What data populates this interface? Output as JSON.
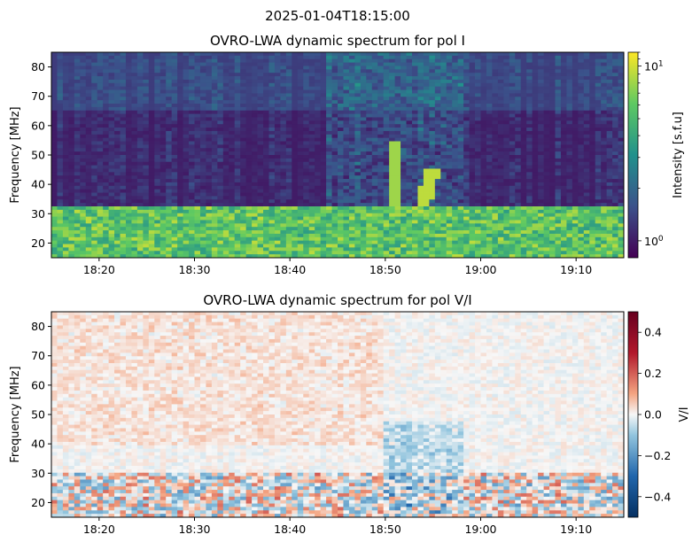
{
  "suptitle": "2025-01-04T18:15:00",
  "chart_data": [
    {
      "type": "heatmap",
      "title": "OVRO-LWA dynamic spectrum for pol I",
      "xlabel": "",
      "ylabel": "Frequency [MHz]",
      "x_ticks": [
        "18:20",
        "18:30",
        "18:40",
        "18:50",
        "19:00",
        "19:10"
      ],
      "xlim": [
        "18:15",
        "19:15"
      ],
      "y_ticks": [
        20,
        30,
        40,
        50,
        60,
        70,
        80
      ],
      "ylim": [
        15,
        85
      ],
      "colormap": "viridis",
      "colorbar": {
        "label": "Intensity [s.f.u]",
        "scale": "log",
        "range": [
          0.8,
          12
        ],
        "ticks": [
          {
            "base": "10",
            "exp": "1",
            "value": 10
          },
          {
            "base": "10",
            "exp": "0",
            "value": 1
          }
        ]
      },
      "features": [
        {
          "kind": "interference-band",
          "freq_range": [
            15,
            33
          ]
        },
        {
          "kind": "drifting-burst",
          "time": "18:51",
          "freq_range": [
            28,
            55
          ]
        },
        {
          "kind": "drifting-burst",
          "time": "18:54",
          "freq_range": [
            31,
            45
          ]
        }
      ]
    },
    {
      "type": "heatmap",
      "title": "OVRO-LWA dynamic spectrum for pol V/I",
      "xlabel": "",
      "ylabel": "Frequency [MHz]",
      "x_ticks": [
        "18:20",
        "18:30",
        "18:40",
        "18:50",
        "19:00",
        "19:10"
      ],
      "xlim": [
        "18:15",
        "19:15"
      ],
      "y_ticks": [
        20,
        30,
        40,
        50,
        60,
        70,
        80
      ],
      "ylim": [
        15,
        85
      ],
      "colormap": "RdBu_r",
      "colorbar": {
        "label": "V/I",
        "scale": "linear",
        "range": [
          -0.5,
          0.5
        ],
        "ticks": [
          "0.4",
          "0.2",
          "0.0",
          "−0.2",
          "−0.4"
        ],
        "tick_values": [
          0.4,
          0.2,
          0.0,
          -0.2,
          -0.4
        ]
      }
    }
  ]
}
